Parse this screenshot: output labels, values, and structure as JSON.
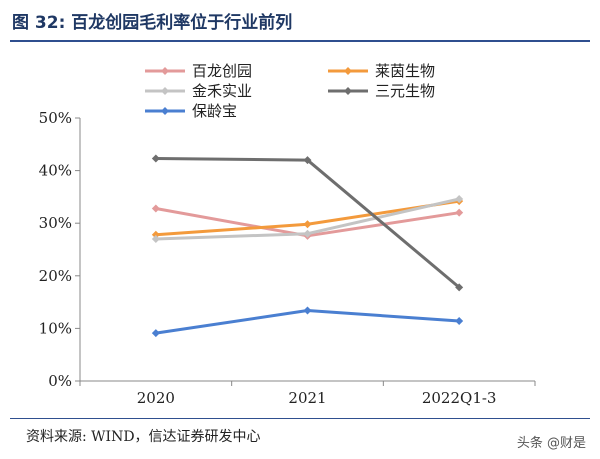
{
  "header": {
    "title": "图 32: 百龙创园毛利率位于行业前列"
  },
  "footer": {
    "source": "资料来源: WIND，信达证券研发中心",
    "watermark": "头条 @财是"
  },
  "chart_data": {
    "type": "line",
    "title": "",
    "xlabel": "",
    "ylabel": "",
    "categories": [
      "2020",
      "2021",
      "2022Q1-3"
    ],
    "ylim": [
      0,
      50
    ],
    "yticks": [
      "0%",
      "10%",
      "20%",
      "30%",
      "40%",
      "50%"
    ],
    "grid": false,
    "legend_position": "top",
    "series": [
      {
        "name": "百龙创园",
        "color": "#e39a9a",
        "values": [
          32.8,
          27.6,
          32.0
        ]
      },
      {
        "name": "莱茵生物",
        "color": "#f39a3c",
        "values": [
          27.8,
          29.8,
          34.2
        ]
      },
      {
        "name": "金禾实业",
        "color": "#c4c4c4",
        "values": [
          27.0,
          28.0,
          34.6
        ]
      },
      {
        "name": "三元生物",
        "color": "#6e6e6e",
        "values": [
          42.3,
          42.0,
          17.8
        ]
      },
      {
        "name": "保龄宝",
        "color": "#4a7fd1",
        "values": [
          9.1,
          13.4,
          11.4
        ]
      }
    ]
  }
}
